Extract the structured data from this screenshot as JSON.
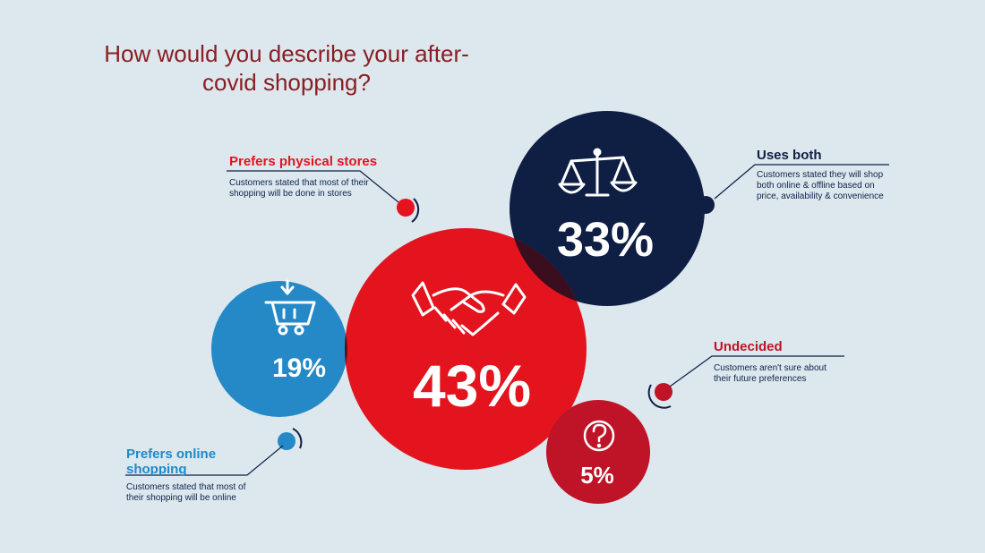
{
  "title": "How would you describe your after-covid shopping?",
  "chart_data": {
    "type": "bubble",
    "title": "How would you describe your after-covid shopping?",
    "unit": "%",
    "series": [
      {
        "name": "Prefers physical stores",
        "value": 43,
        "label": "43%",
        "description": "Customers stated that most of their shopping will be done in stores",
        "color": "#e4141e"
      },
      {
        "name": "Uses both",
        "value": 33,
        "label": "33%",
        "description": "Customers stated they will shop both online & offline based on price, availability & convenience",
        "color": "#0f1f44"
      },
      {
        "name": "Prefers online shopping",
        "value": 19,
        "label": "19%",
        "description": "Customers stated that most of their shopping will be online",
        "color": "#1f8ac9"
      },
      {
        "name": "Undecided",
        "value": 5,
        "label": "5%",
        "description": "Customers aren't sure about their future preferences",
        "color": "#bf1427"
      }
    ]
  },
  "icons": {
    "physical": "handshake-icon",
    "both": "scales-icon",
    "online": "shopping-cart-icon",
    "undecided": "question-icon"
  }
}
